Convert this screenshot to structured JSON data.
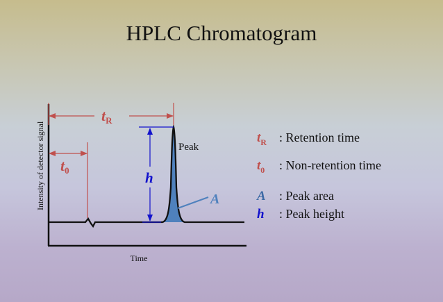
{
  "title": "HPLC Chromatogram",
  "diagram": {
    "y_axis_label": "Intensity of detector signal",
    "x_axis_label": "Time",
    "peak_label": "Peak",
    "tR": {
      "main": "t",
      "sub": "R"
    },
    "t0": {
      "main": "t",
      "sub": "0"
    },
    "h": "h",
    "A": "A"
  },
  "legend": [
    {
      "sym": "t",
      "sub": "R",
      "text": ": Retention time"
    },
    {
      "sym": "t",
      "sub": "0",
      "text": ": Non-retention time"
    },
    {
      "sym": "A",
      "sub": "",
      "text": ": Peak area"
    },
    {
      "sym": "h",
      "sub": "",
      "text": ": Peak height"
    }
  ],
  "colors": {
    "red": "#c0504d",
    "blue": "#1212cc",
    "peak_fill": "#4f81bd",
    "axis": "#111111"
  }
}
